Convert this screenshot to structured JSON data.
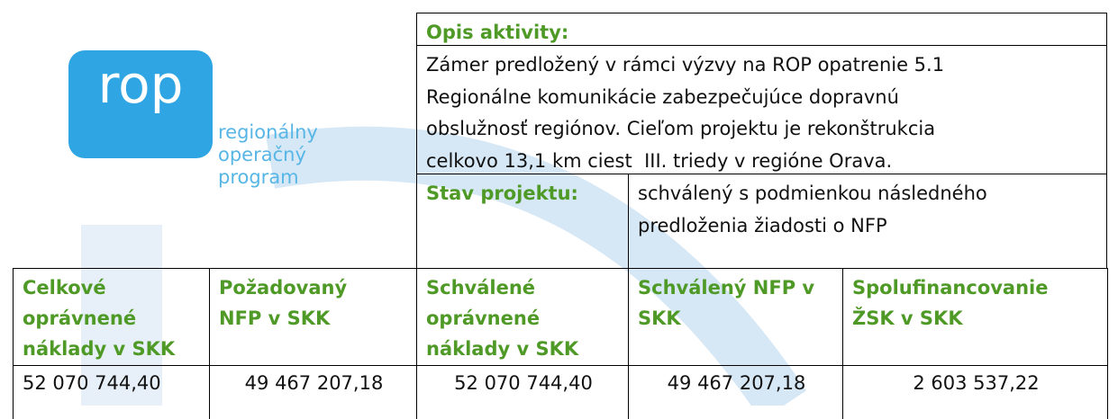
{
  "logo": {
    "mark": "rop",
    "lines": [
      "regionálny",
      "operačný",
      "program"
    ]
  },
  "activity": {
    "label": "Opis aktivity:",
    "lines": [
      "Zámer predložený v rámci výzvy na ROP opatrenie 5.1",
      "Regionálne komunikácie zabezpečujúce dopravnú",
      "obslužnosť regiónov. Cieľom projektu je rekonštrukcia",
      "celkovo 13,1 km ciest  III. triedy v regióne Orava."
    ]
  },
  "status": {
    "label": "Stav projektu:",
    "lines": [
      "schválený s podmienkou následného",
      "predloženia žiadosti o NFP"
    ]
  },
  "table": {
    "headers": [
      [
        "Celkové",
        "oprávnené",
        "náklady v SKK"
      ],
      [
        "Požadovaný",
        "NFP v SKK"
      ],
      [
        "Schválené",
        "oprávnené",
        "náklady v SKK"
      ],
      [
        "Schválený NFP v",
        "SKK"
      ],
      [
        "Spolufinancovanie",
        "ŽSK v SKK"
      ]
    ],
    "values": [
      "52 070 744,40",
      "49 467 207,18",
      "52 070 744,40",
      "49 467 207,18",
      "2 603 537,22"
    ]
  }
}
